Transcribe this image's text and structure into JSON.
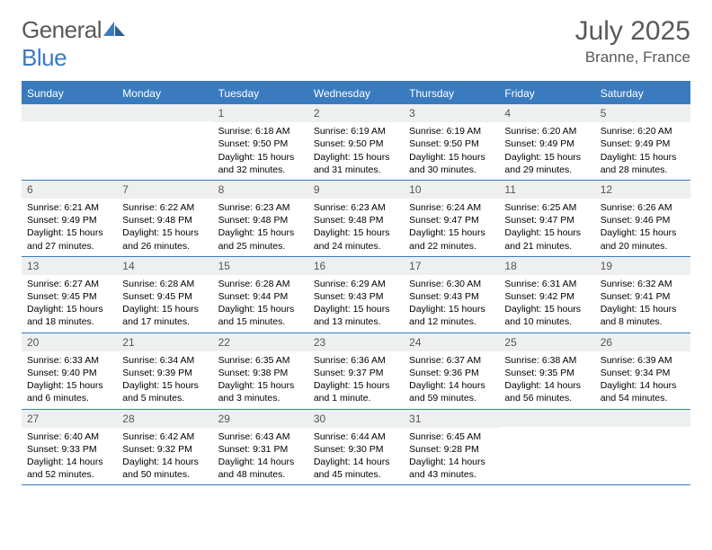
{
  "brand": {
    "name_a": "General",
    "name_b": "Blue"
  },
  "title": "July 2025",
  "location": "Branne, France",
  "colors": {
    "accent": "#3a7bbf",
    "header_text": "#595959",
    "daynum_bg": "#eef0f0"
  },
  "day_names": [
    "Sunday",
    "Monday",
    "Tuesday",
    "Wednesday",
    "Thursday",
    "Friday",
    "Saturday"
  ],
  "weeks": [
    [
      {
        "n": "",
        "sunrise": "",
        "sunset": "",
        "daylight": ""
      },
      {
        "n": "",
        "sunrise": "",
        "sunset": "",
        "daylight": ""
      },
      {
        "n": "1",
        "sunrise": "Sunrise: 6:18 AM",
        "sunset": "Sunset: 9:50 PM",
        "daylight": "Daylight: 15 hours and 32 minutes."
      },
      {
        "n": "2",
        "sunrise": "Sunrise: 6:19 AM",
        "sunset": "Sunset: 9:50 PM",
        "daylight": "Daylight: 15 hours and 31 minutes."
      },
      {
        "n": "3",
        "sunrise": "Sunrise: 6:19 AM",
        "sunset": "Sunset: 9:50 PM",
        "daylight": "Daylight: 15 hours and 30 minutes."
      },
      {
        "n": "4",
        "sunrise": "Sunrise: 6:20 AM",
        "sunset": "Sunset: 9:49 PM",
        "daylight": "Daylight: 15 hours and 29 minutes."
      },
      {
        "n": "5",
        "sunrise": "Sunrise: 6:20 AM",
        "sunset": "Sunset: 9:49 PM",
        "daylight": "Daylight: 15 hours and 28 minutes."
      }
    ],
    [
      {
        "n": "6",
        "sunrise": "Sunrise: 6:21 AM",
        "sunset": "Sunset: 9:49 PM",
        "daylight": "Daylight: 15 hours and 27 minutes."
      },
      {
        "n": "7",
        "sunrise": "Sunrise: 6:22 AM",
        "sunset": "Sunset: 9:48 PM",
        "daylight": "Daylight: 15 hours and 26 minutes."
      },
      {
        "n": "8",
        "sunrise": "Sunrise: 6:23 AM",
        "sunset": "Sunset: 9:48 PM",
        "daylight": "Daylight: 15 hours and 25 minutes."
      },
      {
        "n": "9",
        "sunrise": "Sunrise: 6:23 AM",
        "sunset": "Sunset: 9:48 PM",
        "daylight": "Daylight: 15 hours and 24 minutes."
      },
      {
        "n": "10",
        "sunrise": "Sunrise: 6:24 AM",
        "sunset": "Sunset: 9:47 PM",
        "daylight": "Daylight: 15 hours and 22 minutes."
      },
      {
        "n": "11",
        "sunrise": "Sunrise: 6:25 AM",
        "sunset": "Sunset: 9:47 PM",
        "daylight": "Daylight: 15 hours and 21 minutes."
      },
      {
        "n": "12",
        "sunrise": "Sunrise: 6:26 AM",
        "sunset": "Sunset: 9:46 PM",
        "daylight": "Daylight: 15 hours and 20 minutes."
      }
    ],
    [
      {
        "n": "13",
        "sunrise": "Sunrise: 6:27 AM",
        "sunset": "Sunset: 9:45 PM",
        "daylight": "Daylight: 15 hours and 18 minutes."
      },
      {
        "n": "14",
        "sunrise": "Sunrise: 6:28 AM",
        "sunset": "Sunset: 9:45 PM",
        "daylight": "Daylight: 15 hours and 17 minutes."
      },
      {
        "n": "15",
        "sunrise": "Sunrise: 6:28 AM",
        "sunset": "Sunset: 9:44 PM",
        "daylight": "Daylight: 15 hours and 15 minutes."
      },
      {
        "n": "16",
        "sunrise": "Sunrise: 6:29 AM",
        "sunset": "Sunset: 9:43 PM",
        "daylight": "Daylight: 15 hours and 13 minutes."
      },
      {
        "n": "17",
        "sunrise": "Sunrise: 6:30 AM",
        "sunset": "Sunset: 9:43 PM",
        "daylight": "Daylight: 15 hours and 12 minutes."
      },
      {
        "n": "18",
        "sunrise": "Sunrise: 6:31 AM",
        "sunset": "Sunset: 9:42 PM",
        "daylight": "Daylight: 15 hours and 10 minutes."
      },
      {
        "n": "19",
        "sunrise": "Sunrise: 6:32 AM",
        "sunset": "Sunset: 9:41 PM",
        "daylight": "Daylight: 15 hours and 8 minutes."
      }
    ],
    [
      {
        "n": "20",
        "sunrise": "Sunrise: 6:33 AM",
        "sunset": "Sunset: 9:40 PM",
        "daylight": "Daylight: 15 hours and 6 minutes."
      },
      {
        "n": "21",
        "sunrise": "Sunrise: 6:34 AM",
        "sunset": "Sunset: 9:39 PM",
        "daylight": "Daylight: 15 hours and 5 minutes."
      },
      {
        "n": "22",
        "sunrise": "Sunrise: 6:35 AM",
        "sunset": "Sunset: 9:38 PM",
        "daylight": "Daylight: 15 hours and 3 minutes."
      },
      {
        "n": "23",
        "sunrise": "Sunrise: 6:36 AM",
        "sunset": "Sunset: 9:37 PM",
        "daylight": "Daylight: 15 hours and 1 minute."
      },
      {
        "n": "24",
        "sunrise": "Sunrise: 6:37 AM",
        "sunset": "Sunset: 9:36 PM",
        "daylight": "Daylight: 14 hours and 59 minutes."
      },
      {
        "n": "25",
        "sunrise": "Sunrise: 6:38 AM",
        "sunset": "Sunset: 9:35 PM",
        "daylight": "Daylight: 14 hours and 56 minutes."
      },
      {
        "n": "26",
        "sunrise": "Sunrise: 6:39 AM",
        "sunset": "Sunset: 9:34 PM",
        "daylight": "Daylight: 14 hours and 54 minutes."
      }
    ],
    [
      {
        "n": "27",
        "sunrise": "Sunrise: 6:40 AM",
        "sunset": "Sunset: 9:33 PM",
        "daylight": "Daylight: 14 hours and 52 minutes."
      },
      {
        "n": "28",
        "sunrise": "Sunrise: 6:42 AM",
        "sunset": "Sunset: 9:32 PM",
        "daylight": "Daylight: 14 hours and 50 minutes."
      },
      {
        "n": "29",
        "sunrise": "Sunrise: 6:43 AM",
        "sunset": "Sunset: 9:31 PM",
        "daylight": "Daylight: 14 hours and 48 minutes."
      },
      {
        "n": "30",
        "sunrise": "Sunrise: 6:44 AM",
        "sunset": "Sunset: 9:30 PM",
        "daylight": "Daylight: 14 hours and 45 minutes."
      },
      {
        "n": "31",
        "sunrise": "Sunrise: 6:45 AM",
        "sunset": "Sunset: 9:28 PM",
        "daylight": "Daylight: 14 hours and 43 minutes."
      },
      {
        "n": "",
        "sunrise": "",
        "sunset": "",
        "daylight": ""
      },
      {
        "n": "",
        "sunrise": "",
        "sunset": "",
        "daylight": ""
      }
    ]
  ]
}
